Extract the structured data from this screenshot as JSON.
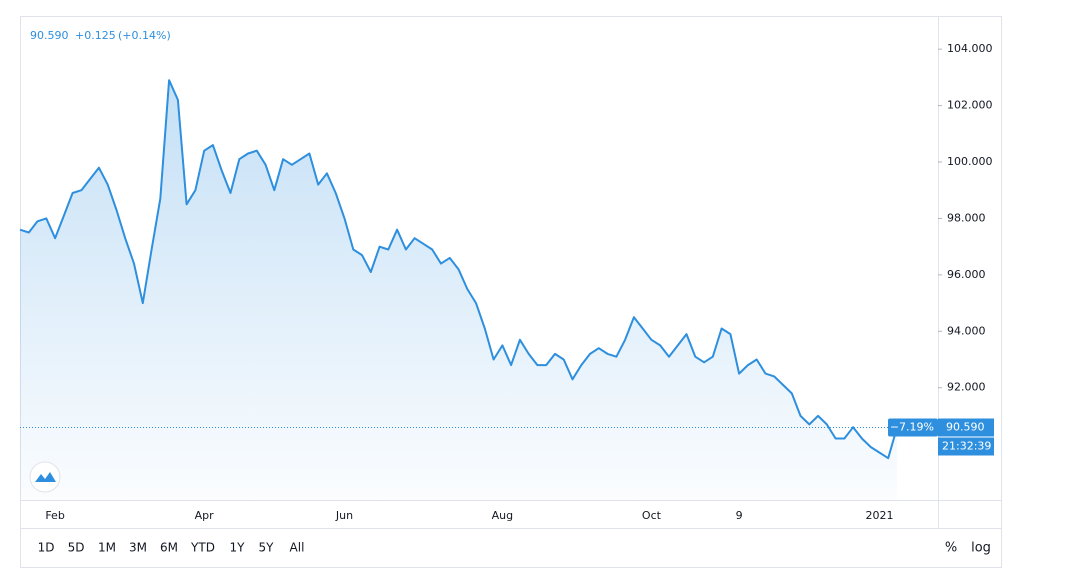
{
  "chart_data": {
    "type": "area",
    "header": {
      "price": "90.590",
      "change": "+0.125",
      "change_pct": "(+0.14%)"
    },
    "badges": {
      "change_pct": "−7.19%",
      "price": "90.590",
      "time": "21:32:39"
    },
    "color": "#2e8fde",
    "categories": [
      null,
      null,
      null,
      null,
      "Feb",
      null,
      null,
      null,
      null,
      null,
      null,
      null,
      null,
      null,
      null,
      null,
      null,
      null,
      null,
      null,
      null,
      "Apr",
      null,
      null,
      null,
      null,
      null,
      null,
      null,
      null,
      null,
      null,
      null,
      null,
      null,
      null,
      null,
      "Jun",
      null,
      null,
      null,
      null,
      null,
      null,
      null,
      null,
      null,
      null,
      null,
      null,
      null,
      null,
      null,
      null,
      null,
      "Aug",
      null,
      null,
      null,
      null,
      null,
      null,
      null,
      null,
      null,
      null,
      null,
      null,
      null,
      null,
      null,
      null,
      "Oct",
      null,
      null,
      null,
      null,
      null,
      null,
      null,
      null,
      null,
      "9",
      null,
      null,
      null,
      null,
      null,
      null,
      null,
      null,
      null,
      null,
      null,
      null,
      null,
      null,
      null,
      "2021",
      null,
      null
    ],
    "values": [
      97.6,
      97.5,
      97.9,
      98.0,
      97.3,
      98.1,
      98.9,
      99.0,
      99.4,
      99.8,
      99.2,
      98.3,
      97.3,
      96.4,
      95.0,
      96.9,
      98.7,
      102.9,
      102.2,
      98.5,
      99.0,
      100.4,
      100.6,
      99.7,
      98.9,
      100.1,
      100.3,
      100.4,
      99.9,
      99.0,
      100.1,
      99.9,
      100.1,
      100.3,
      99.2,
      99.6,
      98.9,
      98.0,
      96.9,
      96.7,
      96.1,
      97.0,
      96.9,
      97.6,
      96.9,
      97.3,
      97.1,
      96.9,
      96.4,
      96.6,
      96.2,
      95.5,
      95.0,
      94.1,
      93.0,
      93.5,
      92.8,
      93.7,
      93.2,
      92.8,
      92.8,
      93.2,
      93.0,
      92.3,
      92.8,
      93.2,
      93.4,
      93.2,
      93.1,
      93.7,
      94.5,
      94.1,
      93.7,
      93.5,
      93.1,
      93.5,
      93.9,
      93.1,
      92.9,
      93.1,
      94.1,
      93.9,
      92.5,
      92.8,
      93.0,
      92.5,
      92.4,
      92.1,
      91.8,
      91.0,
      90.7,
      91.0,
      90.7,
      90.2,
      90.2,
      90.6,
      90.2,
      89.9,
      89.7,
      89.5,
      90.59
    ],
    "ylim": [
      88.02,
      105.14
    ],
    "yticks": [
      {
        "value": 92,
        "label": "92.000"
      },
      {
        "value": 94,
        "label": "94.000"
      },
      {
        "value": 96,
        "label": "96.000"
      },
      {
        "value": 98,
        "label": "98.000"
      },
      {
        "value": 100,
        "label": "100.000"
      },
      {
        "value": 102,
        "label": "102.000"
      },
      {
        "value": 104,
        "label": "104.000"
      }
    ],
    "ranges": [
      "1D",
      "5D",
      "1M",
      "3M",
      "6M",
      "YTD",
      "1Y",
      "5Y",
      "All"
    ],
    "scale_buttons": [
      "%",
      "log"
    ]
  }
}
